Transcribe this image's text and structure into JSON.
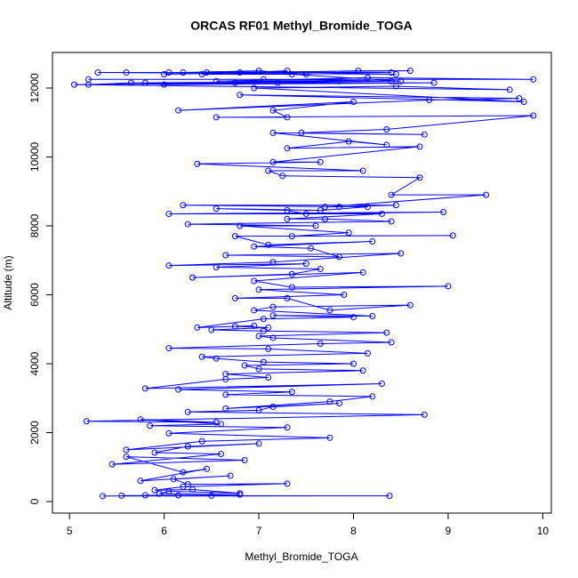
{
  "chart_data": {
    "type": "line",
    "title": "ORCAS RF01 Methyl_Bromide_TOGA",
    "x_label": "Methyl_Bromide_TOGA",
    "y_label": "Altitude (m)",
    "color": "#0000ff",
    "xlim": [
      4.82,
      10.09
    ],
    "ylim": [
      -335,
      13032
    ],
    "xticks": [
      5,
      6,
      7,
      8,
      9,
      10
    ],
    "yticks": [
      0,
      2000,
      4000,
      6000,
      8000,
      10000,
      12000
    ],
    "x": [
      5.35,
      8.38,
      5.55,
      6.15,
      6.5,
      5.8,
      6.8,
      5.95,
      6.05,
      6.8,
      6.3,
      5.9,
      6.2,
      7.3,
      6.25,
      6.1,
      6.7,
      5.75,
      6.45,
      6.2,
      5.6,
      6.85,
      5.45,
      6.6,
      5.9,
      6.25,
      7.0,
      5.6,
      6.4,
      7.75,
      6.05,
      7.3,
      5.85,
      6.6,
      5.75,
      6.55,
      5.18,
      8.75,
      6.25,
      7.0,
      7.15,
      7.85,
      6.65,
      7.75,
      8.2,
      6.65,
      7.35,
      6.15,
      8.3,
      5.8,
      6.65,
      7.1,
      6.65,
      8.1,
      7.0,
      6.85,
      8.0,
      7.05,
      6.55,
      6.4,
      8.15,
      7.1,
      6.05,
      7.65,
      8.4,
      7.15,
      7.0,
      8.35,
      7.05,
      6.5,
      7.1,
      6.75,
      6.95,
      6.35,
      7.05,
      8.0,
      7.15,
      8.2,
      6.95,
      7.15,
      8.6,
      7.75,
      7.3,
      6.75,
      7.9,
      7.0,
      9.0,
      7.35,
      6.95,
      8.1,
      6.3,
      7.35,
      7.65,
      6.55,
      7.5,
      6.05,
      7.15,
      8.5,
      6.65,
      7.85,
      7.55,
      6.95,
      8.2,
      7.1,
      6.75,
      9.05,
      7.35,
      7.95,
      6.8,
      7.6,
      6.25,
      8.4,
      7.7,
      7.3,
      8.3,
      6.05,
      8.95,
      7.5,
      7.3,
      6.55,
      7.65,
      8.15,
      6.2,
      8.45,
      7.85,
      7.7,
      9.4,
      8.4,
      8.7,
      7.25,
      7.1,
      8.1,
      6.35,
      7.65,
      7.15,
      8.7,
      7.3,
      7.95,
      8.35,
      7.15,
      8.75,
      7.45,
      8.35,
      9.9,
      6.55,
      7.3,
      7.15,
      8.0,
      6.15,
      8.8,
      9.75,
      6.8,
      9.8,
      6.95,
      8.45,
      9.65,
      5.05,
      7.2,
      5.65,
      5.2,
      8.4,
      5.8,
      6.0,
      8.85,
      6.75,
      7.85,
      6.55,
      8.15,
      9.9,
      5.2,
      7.05,
      8.5,
      7.35,
      8.4,
      5.3,
      8.45,
      5.6,
      6.05,
      6.45,
      6.8,
      6.0,
      8.05,
      8.6,
      6.2,
      7.0,
      7.5,
      6.4,
      7.3
    ],
    "values": [
      160,
      165,
      170,
      180,
      170,
      180,
      200,
      230,
      300,
      240,
      350,
      330,
      430,
      520,
      500,
      650,
      750,
      600,
      950,
      850,
      1300,
      1200,
      1080,
      1380,
      1420,
      1600,
      1680,
      1500,
      1750,
      1850,
      1980,
      2150,
      2200,
      2250,
      2380,
      2300,
      2330,
      2520,
      2600,
      2650,
      2750,
      2850,
      2700,
      2900,
      3050,
      3100,
      3180,
      3250,
      3420,
      3280,
      3550,
      3600,
      3700,
      3800,
      3850,
      3950,
      4000,
      4050,
      4150,
      4200,
      4300,
      4430,
      4450,
      4580,
      4620,
      4750,
      4800,
      4900,
      4950,
      4980,
      5050,
      5080,
      5100,
      5050,
      5300,
      5350,
      5400,
      5380,
      5550,
      5650,
      5700,
      5550,
      5900,
      5900,
      6000,
      6150,
      6250,
      6220,
      6400,
      6650,
      6500,
      6600,
      6750,
      6800,
      6900,
      6850,
      6950,
      7200,
      7150,
      7100,
      7350,
      7400,
      7550,
      7450,
      7700,
      7720,
      7700,
      7800,
      8000,
      8000,
      8050,
      8130,
      8200,
      8200,
      8350,
      8350,
      8400,
      8350,
      8450,
      8500,
      8450,
      8550,
      8600,
      8600,
      8550,
      8550,
      8900,
      8900,
      9400,
      9450,
      9600,
      9600,
      9800,
      9850,
      9850,
      10300,
      10250,
      10450,
      10350,
      10700,
      10650,
      10700,
      10800,
      11200,
      11150,
      11150,
      11350,
      11600,
      11350,
      11650,
      11700,
      11800,
      11600,
      12000,
      12050,
      11950,
      12100,
      12150,
      12150,
      12100,
      12200,
      12150,
      12100,
      12150,
      12150,
      12200,
      12200,
      12300,
      12250,
      12250,
      12250,
      12200,
      12400,
      12450,
      12450,
      12400,
      12450,
      12450,
      12450,
      12450,
      12400,
      12500,
      12500,
      12450,
      12500,
      12400,
      12400,
      12500
    ]
  }
}
